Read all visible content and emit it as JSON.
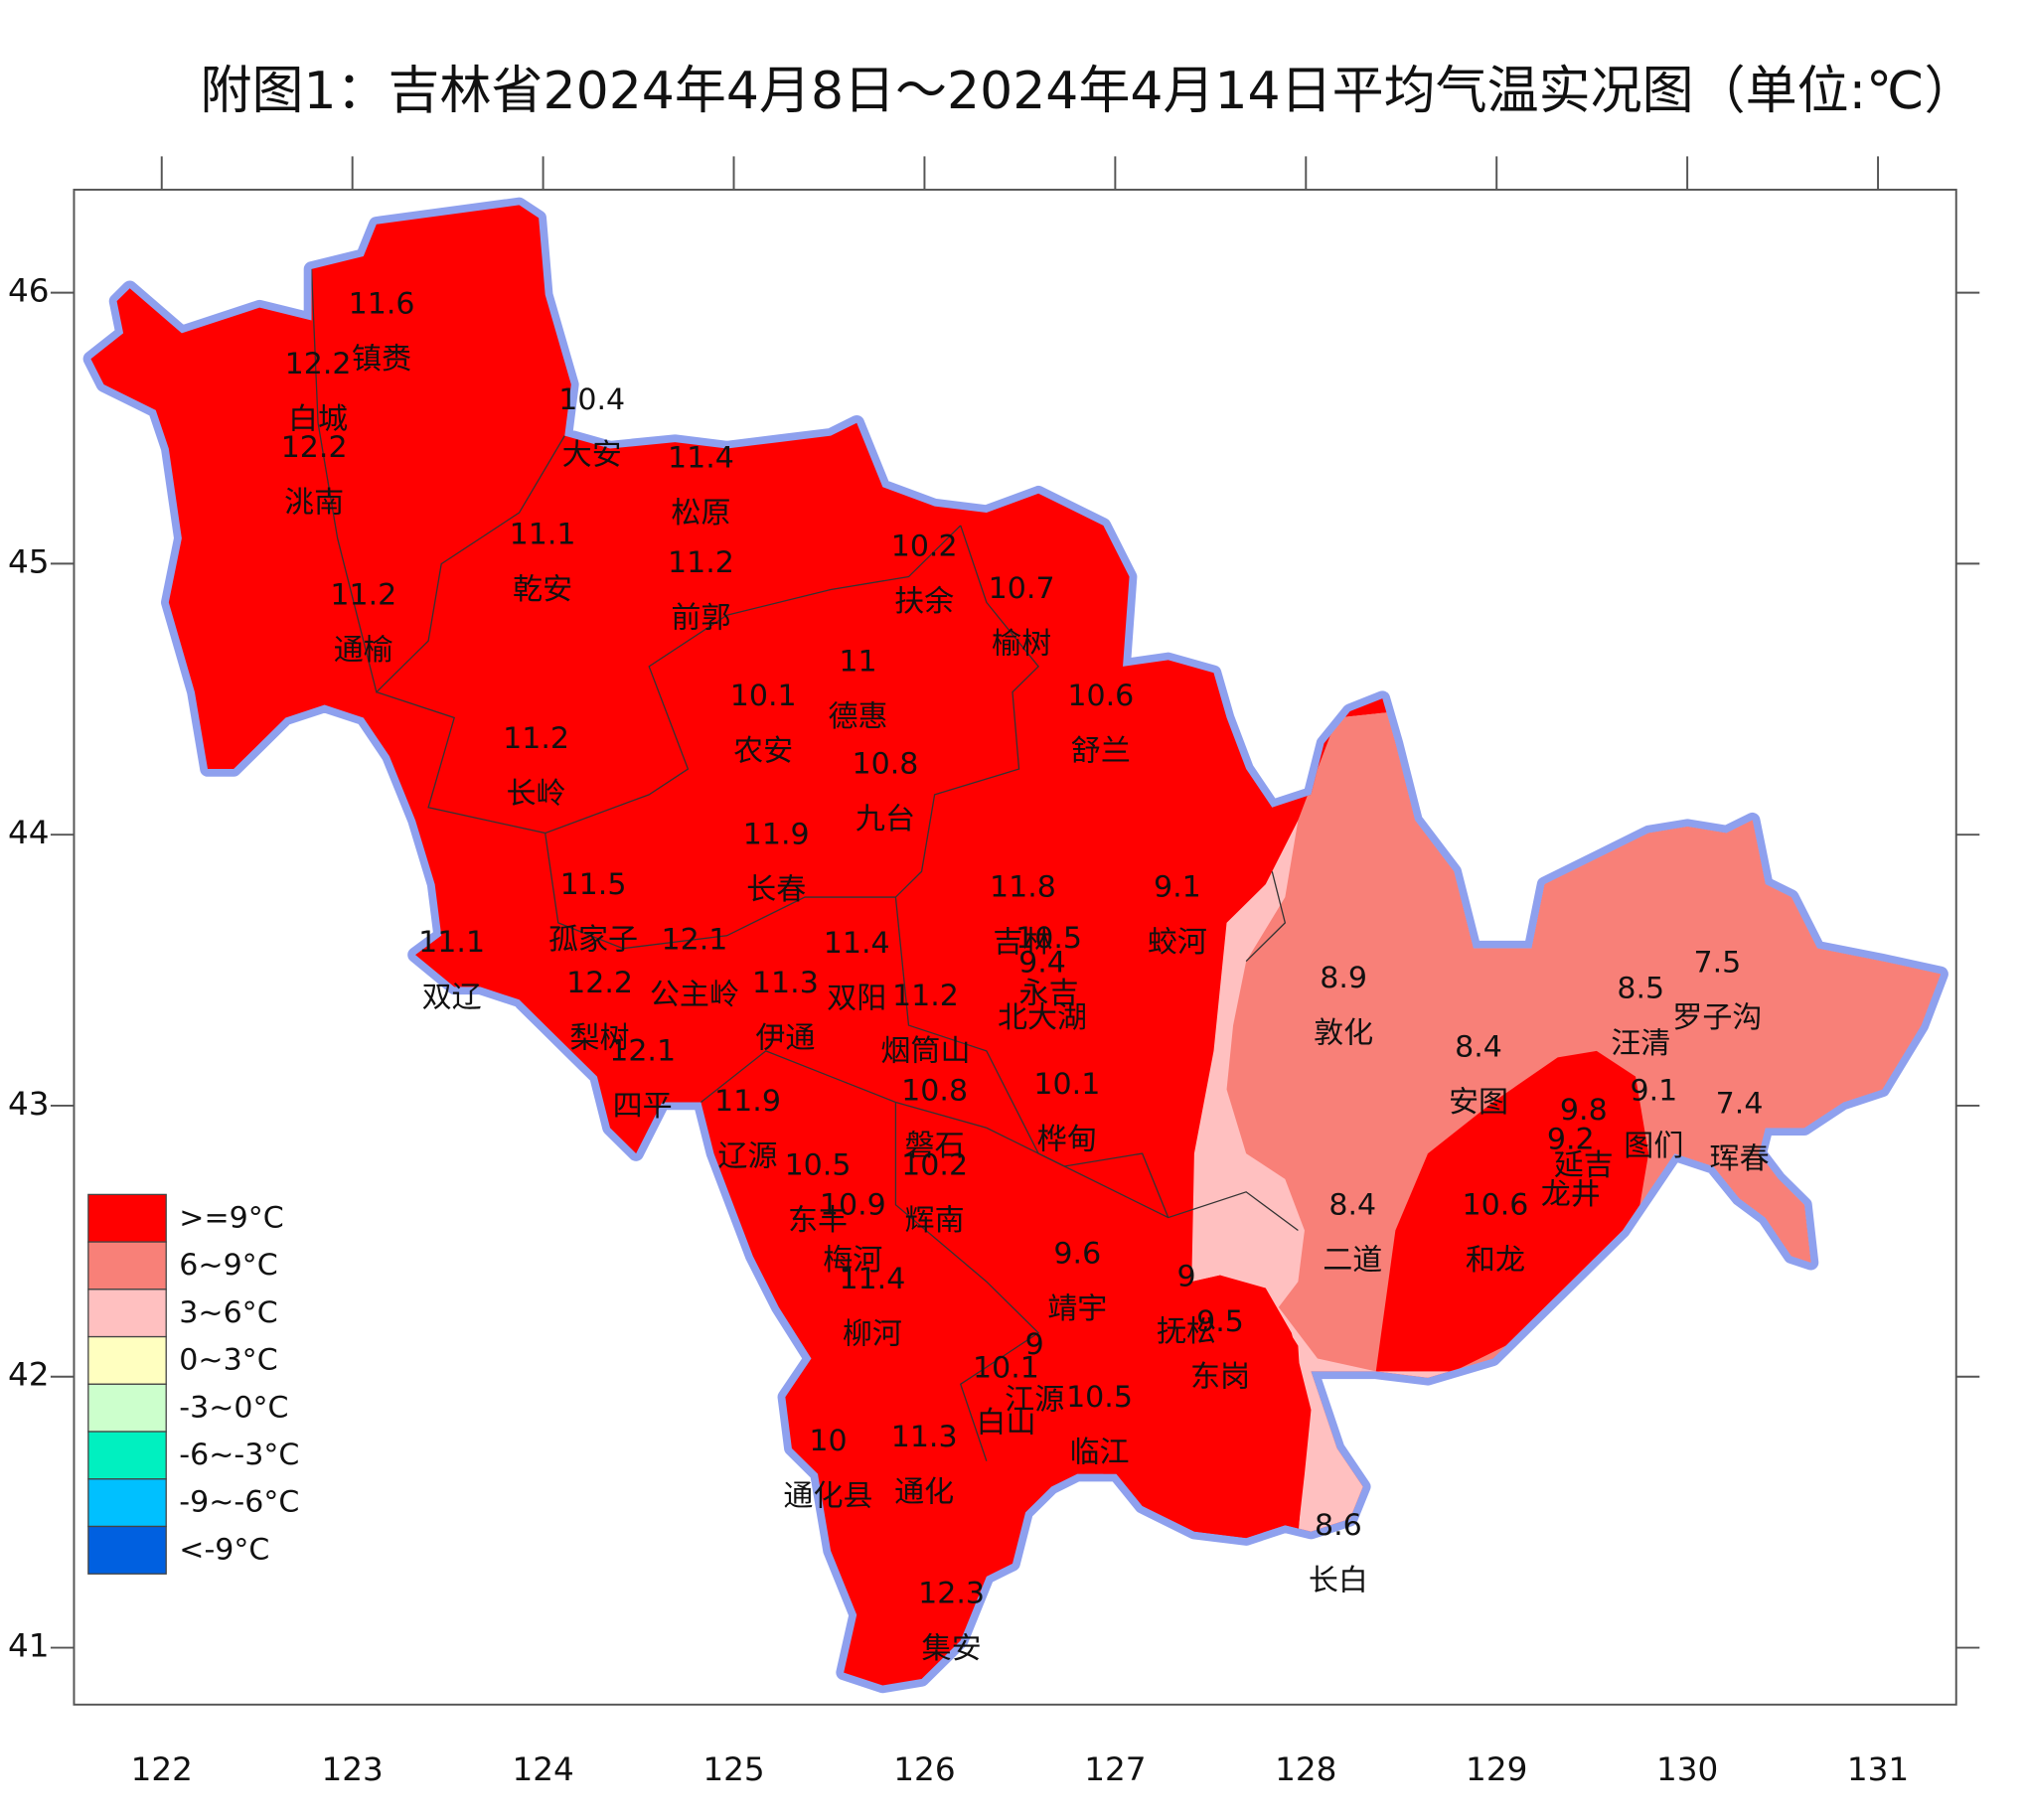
{
  "title": "附图1：吉林省2024年4月8日～2024年4月14日平均气温实况图（单位:℃）",
  "map": {
    "xlim": [
      121.54,
      131.41
    ],
    "ylim": [
      40.79,
      46.38
    ],
    "xticks": [
      122,
      123,
      124,
      125,
      126,
      127,
      128,
      129,
      130,
      131
    ],
    "yticks": [
      41,
      42,
      43,
      44,
      45,
      46
    ]
  },
  "legend": [
    {
      "label": ">=9°C",
      "color": "#ff0000"
    },
    {
      "label": "6~9°C",
      "color": "#f88078"
    },
    {
      "label": "3~6°C",
      "color": "#ffc0c0"
    },
    {
      "label": "0~3°C",
      "color": "#ffffc0"
    },
    {
      "label": "-3~0°C",
      "color": "#ccffcc"
    },
    {
      "label": "-6~-3°C",
      "color": "#00f0c0"
    },
    {
      "label": "-9~-6°C",
      "color": "#00c0ff"
    },
    {
      "label": "<-9°C",
      "color": "#0060e0"
    }
  ],
  "stations": [
    {
      "name": "镇赉",
      "value": 11.6
    },
    {
      "name": "白城",
      "value": 12.2
    },
    {
      "name": "大安",
      "value": 10.4
    },
    {
      "name": "洮南",
      "value": 12.2
    },
    {
      "name": "松原",
      "value": 11.4
    },
    {
      "name": "乾安",
      "value": 11.1
    },
    {
      "name": "前郭",
      "value": 11.2
    },
    {
      "name": "扶余",
      "value": 10.2
    },
    {
      "name": "榆树",
      "value": 10.7
    },
    {
      "name": "通榆",
      "value": 11.2
    },
    {
      "name": "德惠",
      "value": 11
    },
    {
      "name": "农安",
      "value": 10.1
    },
    {
      "name": "舒兰",
      "value": 10.6
    },
    {
      "name": "长岭",
      "value": 11.2
    },
    {
      "name": "九台",
      "value": 10.8
    },
    {
      "name": "长春",
      "value": 11.9
    },
    {
      "name": "孤家子",
      "value": 11.5
    },
    {
      "name": "吉林",
      "value": 11.8
    },
    {
      "name": "蛟河",
      "value": 9.1
    },
    {
      "name": "双辽",
      "value": 11.1
    },
    {
      "name": "公主岭",
      "value": 12.1
    },
    {
      "name": "双阳",
      "value": 11.4
    },
    {
      "name": "永吉",
      "value": 10.5
    },
    {
      "name": "北大湖",
      "value": 9.4
    },
    {
      "name": "梨树",
      "value": 12.2
    },
    {
      "name": "伊通",
      "value": 11.3
    },
    {
      "name": "烟筒山",
      "value": 11.2
    },
    {
      "name": "敦化",
      "value": 8.9
    },
    {
      "name": "汪清",
      "value": 8.5
    },
    {
      "name": "罗子沟",
      "value": 7.5
    },
    {
      "name": "四平",
      "value": 12.1
    },
    {
      "name": "安图",
      "value": 8.4
    },
    {
      "name": "磐石",
      "value": 10.8
    },
    {
      "name": "桦甸",
      "value": 10.1
    },
    {
      "name": "延吉",
      "value": 9.8
    },
    {
      "name": "图们",
      "value": 9.1
    },
    {
      "name": "珲春",
      "value": 7.4
    },
    {
      "name": "辽源",
      "value": 11.9
    },
    {
      "name": "龙井",
      "value": 9.2
    },
    {
      "name": "东丰",
      "value": 10.5
    },
    {
      "name": "辉南",
      "value": 10.2
    },
    {
      "name": "梅河",
      "value": 10.9
    },
    {
      "name": "二道",
      "value": 8.4
    },
    {
      "name": "和龙",
      "value": 10.6
    },
    {
      "name": "靖宇",
      "value": 9.6
    },
    {
      "name": "柳河",
      "value": 11.4
    },
    {
      "name": "抚松",
      "value": 9
    },
    {
      "name": "东岗",
      "value": 9.5
    },
    {
      "name": "江源",
      "value": 9
    },
    {
      "name": "白山",
      "value": 10.1
    },
    {
      "name": "临江",
      "value": 10.5
    },
    {
      "name": "通化县",
      "value": 10
    },
    {
      "name": "通化",
      "value": 11.3
    },
    {
      "name": "长白",
      "value": 8.6
    },
    {
      "name": "集安",
      "value": 12.3
    }
  ]
}
